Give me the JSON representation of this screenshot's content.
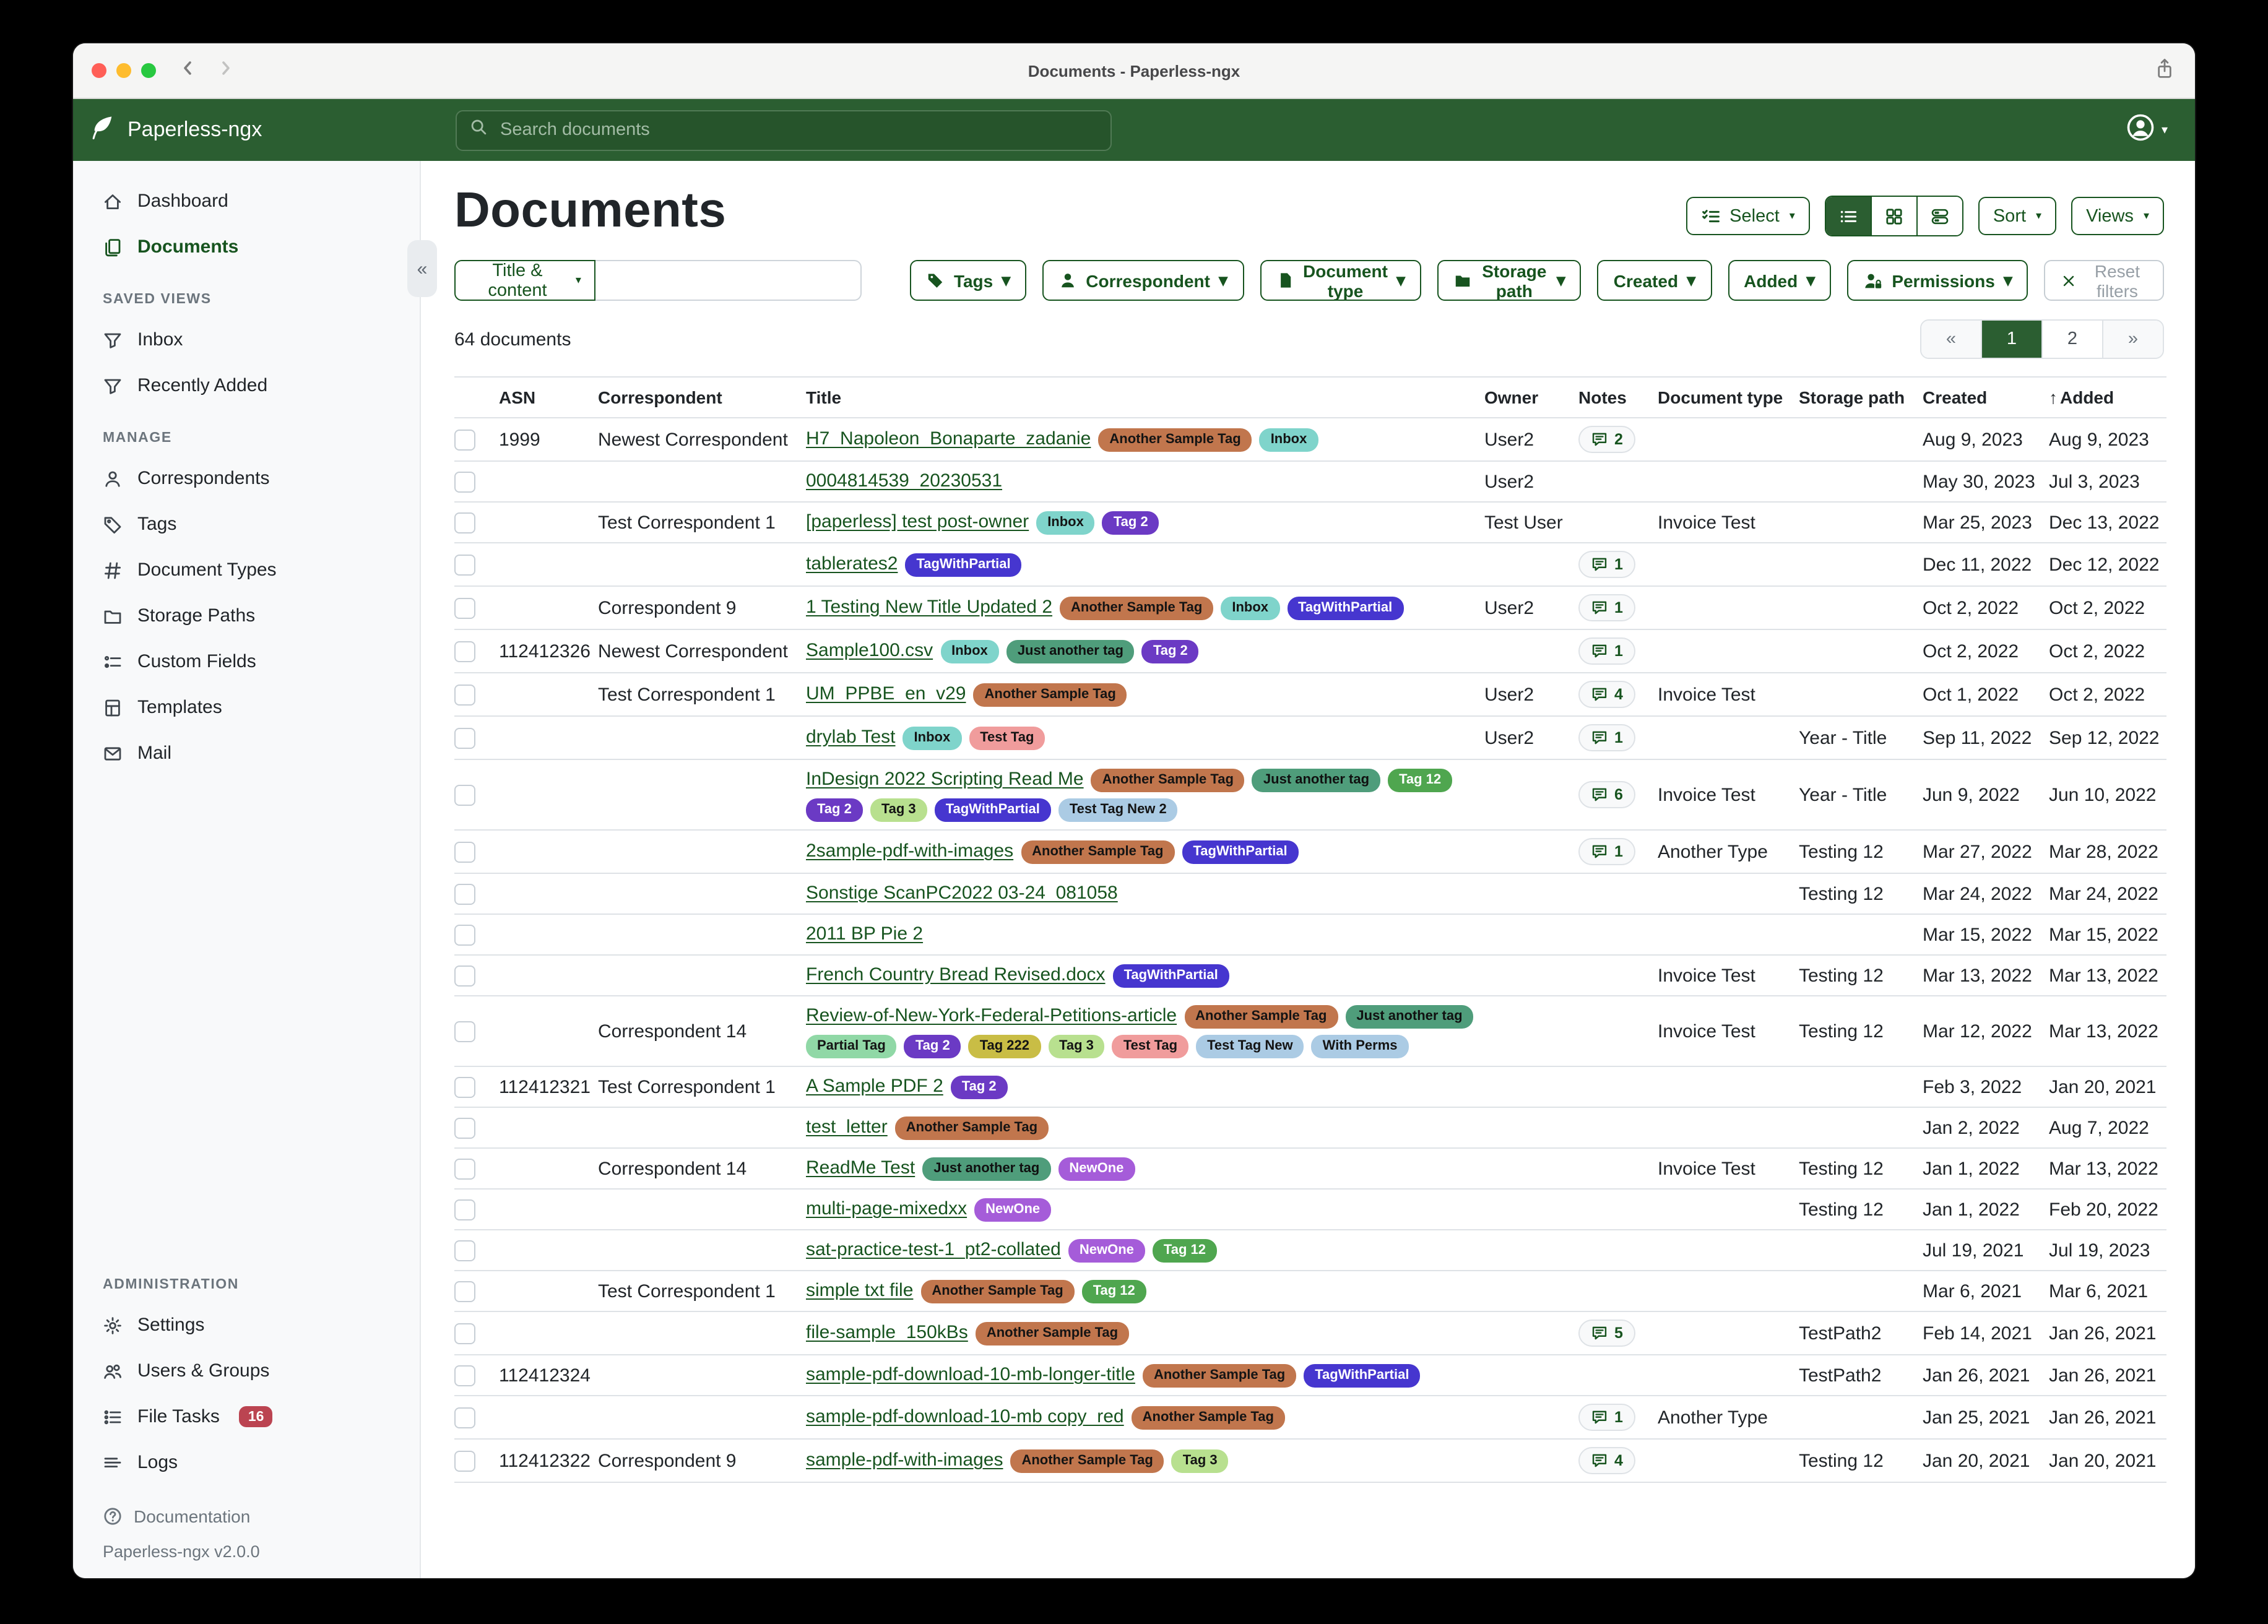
{
  "window": {
    "title": "Documents - Paperless-ngx"
  },
  "navbar": {
    "brand": "Paperless-ngx",
    "search_placeholder": "Search documents"
  },
  "sidebar": {
    "groups": [
      {
        "title": null,
        "items": [
          {
            "label": "Dashboard",
            "icon": "home",
            "active": false
          },
          {
            "label": "Documents",
            "icon": "docs",
            "active": true
          }
        ]
      },
      {
        "title": "SAVED VIEWS",
        "items": [
          {
            "label": "Inbox",
            "icon": "funnel",
            "active": false
          },
          {
            "label": "Recently Added",
            "icon": "funnel",
            "active": false
          }
        ]
      },
      {
        "title": "MANAGE",
        "items": [
          {
            "label": "Correspondents",
            "icon": "person",
            "active": false
          },
          {
            "label": "Tags",
            "icon": "tag",
            "active": false
          },
          {
            "label": "Document Types",
            "icon": "hash",
            "active": false
          },
          {
            "label": "Storage Paths",
            "icon": "folder",
            "active": false
          },
          {
            "label": "Custom Fields",
            "icon": "fields",
            "active": false
          },
          {
            "label": "Templates",
            "icon": "template",
            "active": false
          },
          {
            "label": "Mail",
            "icon": "mail",
            "active": false
          }
        ]
      },
      {
        "title": "ADMINISTRATION",
        "items": [
          {
            "label": "Settings",
            "icon": "gear",
            "active": false
          },
          {
            "label": "Users & Groups",
            "icon": "users",
            "active": false
          },
          {
            "label": "File Tasks",
            "icon": "tasks",
            "active": false,
            "badge": "16"
          },
          {
            "label": "Logs",
            "icon": "logs",
            "active": false
          }
        ]
      }
    ],
    "footer": {
      "documentation": "Documentation",
      "version": "Paperless-ngx v2.0.0"
    }
  },
  "header": {
    "title": "Documents",
    "select_label": "Select",
    "sort_label": "Sort",
    "views_label": "Views"
  },
  "filters": {
    "title_content_label": "Title & content",
    "search_value": "",
    "chips": [
      {
        "label": "Tags",
        "icon": "tag-fill"
      },
      {
        "label": "Correspondent",
        "icon": "person-fill"
      },
      {
        "label": "Document type",
        "icon": "file-fill"
      },
      {
        "label": "Storage path",
        "icon": "folder-fill"
      },
      {
        "label": "Created",
        "icon": null
      },
      {
        "label": "Added",
        "icon": null
      },
      {
        "label": "Permissions",
        "icon": "person-lock"
      }
    ],
    "reset_label": "Reset filters"
  },
  "summary": "64 documents",
  "pagination": {
    "prev": "«",
    "pages": [
      "1",
      "2"
    ],
    "active": "1",
    "next": "»"
  },
  "table": {
    "columns": [
      "ASN",
      "Correspondent",
      "Title",
      "Owner",
      "Notes",
      "Document type",
      "Storage path",
      "Created",
      "Added"
    ],
    "sorted_by": "Added",
    "sort_direction": "ascending",
    "tag_colors": {
      "Another Sample Tag": {
        "bg": "#c1764d",
        "fg": "#141414"
      },
      "Inbox": {
        "bg": "#7fd4cb",
        "fg": "#141414"
      },
      "Tag 2": {
        "bg": "#6b3ac4",
        "fg": "#ffffff"
      },
      "TagWithPartial": {
        "bg": "#4636cf",
        "fg": "#ffffff"
      },
      "Just another tag": {
        "bg": "#4f9d7b",
        "fg": "#101010"
      },
      "Tag 12": {
        "bg": "#4fa64f",
        "fg": "#ffffff"
      },
      "Test Tag": {
        "bg": "#f09c9c",
        "fg": "#141414"
      },
      "Tag 3": {
        "bg": "#b8e08f",
        "fg": "#141414"
      },
      "Test Tag New 2": {
        "bg": "#abcbe4",
        "fg": "#141414"
      },
      "Test Tag New": {
        "bg": "#abcbe4",
        "fg": "#141414"
      },
      "With Perms": {
        "bg": "#abcbe4",
        "fg": "#141414"
      },
      "Partial Tag": {
        "bg": "#90d8a6",
        "fg": "#141414"
      },
      "Tag 222": {
        "bg": "#c9bd45",
        "fg": "#141414"
      },
      "NewOne": {
        "bg": "#a55cd9",
        "fg": "#ffffff"
      }
    },
    "rows": [
      {
        "asn": "1999",
        "correspondent": "Newest Correspondent",
        "title": "H7_Napoleon_Bonaparte_zadanie",
        "tags": [
          "Another Sample Tag",
          "Inbox"
        ],
        "owner": "User2",
        "notes": "2",
        "doctype": "",
        "path": "",
        "created": "Aug 9, 2023",
        "added": "Aug 9, 2023"
      },
      {
        "asn": "",
        "correspondent": "",
        "title": "0004814539_20230531",
        "tags": [],
        "owner": "User2",
        "notes": "",
        "doctype": "",
        "path": "",
        "created": "May 30, 2023",
        "added": "Jul 3, 2023"
      },
      {
        "asn": "",
        "correspondent": "Test Correspondent 1",
        "title": "[paperless] test post-owner",
        "tags": [
          "Inbox",
          "Tag 2"
        ],
        "owner": "Test User",
        "notes": "",
        "doctype": "Invoice Test",
        "path": "",
        "created": "Mar 25, 2023",
        "added": "Dec 13, 2022"
      },
      {
        "asn": "",
        "correspondent": "",
        "title": "tablerates2",
        "tags": [
          "TagWithPartial"
        ],
        "owner": "",
        "notes": "1",
        "doctype": "",
        "path": "",
        "created": "Dec 11, 2022",
        "added": "Dec 12, 2022"
      },
      {
        "asn": "",
        "correspondent": "Correspondent 9",
        "title": "1 Testing New Title Updated 2",
        "tags": [
          "Another Sample Tag",
          "Inbox",
          "TagWithPartial"
        ],
        "owner": "User2",
        "notes": "1",
        "doctype": "",
        "path": "",
        "created": "Oct 2, 2022",
        "added": "Oct 2, 2022"
      },
      {
        "asn": "112412326",
        "correspondent": "Newest Correspondent",
        "title": "Sample100.csv",
        "tags": [
          "Inbox",
          "Just another tag",
          "Tag 2"
        ],
        "owner": "",
        "notes": "1",
        "doctype": "",
        "path": "",
        "created": "Oct 2, 2022",
        "added": "Oct 2, 2022"
      },
      {
        "asn": "",
        "correspondent": "Test Correspondent 1",
        "title": "UM_PPBE_en_v29",
        "tags": [
          "Another Sample Tag"
        ],
        "owner": "User2",
        "notes": "4",
        "doctype": "Invoice Test",
        "path": "",
        "created": "Oct 1, 2022",
        "added": "Oct 2, 2022"
      },
      {
        "asn": "",
        "correspondent": "",
        "title": "drylab Test",
        "tags": [
          "Inbox",
          "Test Tag"
        ],
        "owner": "User2",
        "notes": "1",
        "doctype": "",
        "path": "Year - Title",
        "created": "Sep 11, 2022",
        "added": "Sep 12, 2022"
      },
      {
        "asn": "",
        "correspondent": "",
        "title": "InDesign 2022 Scripting Read Me",
        "tags": [
          "Another Sample Tag",
          "Just another tag",
          "Tag 12",
          "Tag 2",
          "Tag 3",
          "TagWithPartial",
          "Test Tag New 2"
        ],
        "owner": "",
        "notes": "6",
        "doctype": "Invoice Test",
        "path": "Year - Title",
        "created": "Jun 9, 2022",
        "added": "Jun 10, 2022"
      },
      {
        "asn": "",
        "correspondent": "",
        "title": "2sample-pdf-with-images",
        "tags": [
          "Another Sample Tag",
          "TagWithPartial"
        ],
        "owner": "",
        "notes": "1",
        "doctype": "Another Type",
        "path": "Testing 12",
        "created": "Mar 27, 2022",
        "added": "Mar 28, 2022"
      },
      {
        "asn": "",
        "correspondent": "",
        "title": "Sonstige ScanPC2022 03-24_081058",
        "tags": [],
        "owner": "",
        "notes": "",
        "doctype": "",
        "path": "Testing 12",
        "created": "Mar 24, 2022",
        "added": "Mar 24, 2022"
      },
      {
        "asn": "",
        "correspondent": "",
        "title": "2011 BP Pie 2",
        "tags": [],
        "owner": "",
        "notes": "",
        "doctype": "",
        "path": "",
        "created": "Mar 15, 2022",
        "added": "Mar 15, 2022"
      },
      {
        "asn": "",
        "correspondent": "",
        "title": "French Country Bread Revised.docx",
        "tags": [
          "TagWithPartial"
        ],
        "owner": "",
        "notes": "",
        "doctype": "Invoice Test",
        "path": "Testing 12",
        "created": "Mar 13, 2022",
        "added": "Mar 13, 2022"
      },
      {
        "asn": "",
        "correspondent": "Correspondent 14",
        "title": "Review-of-New-York-Federal-Petitions-article",
        "tags": [
          "Another Sample Tag",
          "Just another tag",
          "Partial Tag",
          "Tag 2",
          "Tag 222",
          "Tag 3",
          "Test Tag",
          "Test Tag New",
          "With Perms"
        ],
        "owner": "",
        "notes": "",
        "doctype": "Invoice Test",
        "path": "Testing 12",
        "created": "Mar 12, 2022",
        "added": "Mar 13, 2022"
      },
      {
        "asn": "112412321",
        "correspondent": "Test Correspondent 1",
        "title": "A Sample PDF 2",
        "tags": [
          "Tag 2"
        ],
        "owner": "",
        "notes": "",
        "doctype": "",
        "path": "",
        "created": "Feb 3, 2022",
        "added": "Jan 20, 2021"
      },
      {
        "asn": "",
        "correspondent": "",
        "title": "test_letter",
        "tags": [
          "Another Sample Tag"
        ],
        "owner": "",
        "notes": "",
        "doctype": "",
        "path": "",
        "created": "Jan 2, 2022",
        "added": "Aug 7, 2022"
      },
      {
        "asn": "",
        "correspondent": "Correspondent 14",
        "title": "ReadMe Test",
        "tags": [
          "Just another tag",
          "NewOne"
        ],
        "owner": "",
        "notes": "",
        "doctype": "Invoice Test",
        "path": "Testing 12",
        "created": "Jan 1, 2022",
        "added": "Mar 13, 2022"
      },
      {
        "asn": "",
        "correspondent": "",
        "title": "multi-page-mixedxx",
        "tags": [
          "NewOne"
        ],
        "owner": "",
        "notes": "",
        "doctype": "",
        "path": "Testing 12",
        "created": "Jan 1, 2022",
        "added": "Feb 20, 2022"
      },
      {
        "asn": "",
        "correspondent": "",
        "title": "sat-practice-test-1_pt2-collated",
        "tags": [
          "NewOne",
          "Tag 12"
        ],
        "owner": "",
        "notes": "",
        "doctype": "",
        "path": "",
        "created": "Jul 19, 2021",
        "added": "Jul 19, 2023"
      },
      {
        "asn": "",
        "correspondent": "Test Correspondent 1",
        "title": "simple txt file",
        "tags": [
          "Another Sample Tag",
          "Tag 12"
        ],
        "owner": "",
        "notes": "",
        "doctype": "",
        "path": "",
        "created": "Mar 6, 2021",
        "added": "Mar 6, 2021"
      },
      {
        "asn": "",
        "correspondent": "",
        "title": "file-sample_150kBs",
        "tags": [
          "Another Sample Tag"
        ],
        "owner": "",
        "notes": "5",
        "doctype": "",
        "path": "TestPath2",
        "created": "Feb 14, 2021",
        "added": "Jan 26, 2021"
      },
      {
        "asn": "112412324",
        "correspondent": "",
        "title": "sample-pdf-download-10-mb-longer-title",
        "tags": [
          "Another Sample Tag",
          "TagWithPartial"
        ],
        "owner": "",
        "notes": "",
        "doctype": "",
        "path": "TestPath2",
        "created": "Jan 26, 2021",
        "added": "Jan 26, 2021"
      },
      {
        "asn": "",
        "correspondent": "",
        "title": "sample-pdf-download-10-mb copy_red",
        "tags": [
          "Another Sample Tag"
        ],
        "owner": "",
        "notes": "1",
        "doctype": "Another Type",
        "path": "",
        "created": "Jan 25, 2021",
        "added": "Jan 26, 2021"
      },
      {
        "asn": "112412322",
        "correspondent": "Correspondent 9",
        "title": "sample-pdf-with-images",
        "tags": [
          "Another Sample Tag",
          "Tag 3"
        ],
        "owner": "",
        "notes": "4",
        "doctype": "",
        "path": "Testing 12",
        "created": "Jan 20, 2021",
        "added": "Jan 20, 2021"
      }
    ]
  }
}
